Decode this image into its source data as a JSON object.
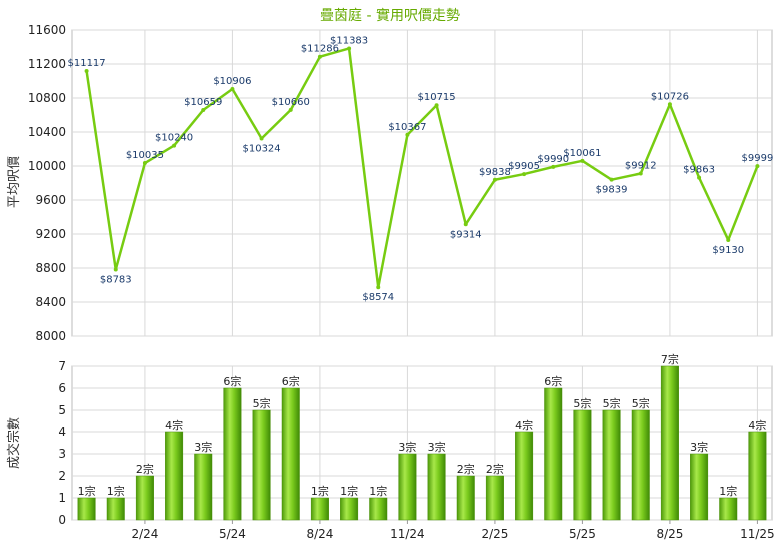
{
  "chart_data": [
    {
      "type": "line",
      "title": "疊茵庭 - 實用呎價走勢",
      "ylabel": "平均呎價",
      "ylim": [
        8000,
        11600
      ],
      "yticks": [
        8000,
        8400,
        8800,
        9200,
        9600,
        10000,
        10400,
        10800,
        11200,
        11600
      ],
      "grid": true,
      "line_color": "#77cc11",
      "series": [
        {
          "values": [
            11117,
            8783,
            10035,
            10240,
            10659,
            10906,
            10324,
            10660,
            11286,
            11383,
            8574,
            10367,
            10715,
            9314,
            9838,
            9905,
            9990,
            10061,
            9839,
            9912,
            10726,
            9863,
            9130,
            9999
          ],
          "labels": [
            "$11117",
            "$8783",
            "$10035",
            "$10240",
            "$10659",
            "$10906",
            "$10324",
            "$10660",
            "$11286",
            "$11383",
            "$8574",
            "$10367",
            "$10715",
            "$9314",
            "$9838",
            "$9905",
            "$9990",
            "$10061",
            "$9839",
            "$9912",
            "$10726",
            "$9863",
            "$9130",
            "$9999"
          ]
        }
      ]
    },
    {
      "type": "bar",
      "ylabel": "成交宗數",
      "ylim": [
        0,
        7
      ],
      "yticks": [
        0,
        1,
        2,
        3,
        4,
        5,
        6,
        7
      ],
      "grid": true,
      "bar_color": "#66bb11",
      "x_tick_labels": [
        "2/24",
        "5/24",
        "8/24",
        "11/24",
        "2/25",
        "5/25",
        "8/25",
        "11/25"
      ],
      "series": [
        {
          "values": [
            1,
            1,
            2,
            4,
            3,
            6,
            5,
            6,
            1,
            1,
            1,
            3,
            3,
            2,
            2,
            4,
            6,
            5,
            5,
            5,
            7,
            3,
            1,
            4
          ],
          "labels": [
            "1宗",
            "1宗",
            "2宗",
            "4宗",
            "3宗",
            "6宗",
            "5宗",
            "6宗",
            "1宗",
            "1宗",
            "1宗",
            "3宗",
            "3宗",
            "2宗",
            "2宗",
            "4宗",
            "6宗",
            "5宗",
            "5宗",
            "5宗",
            "7宗",
            "3宗",
            "1宗",
            "4宗"
          ]
        }
      ]
    }
  ]
}
